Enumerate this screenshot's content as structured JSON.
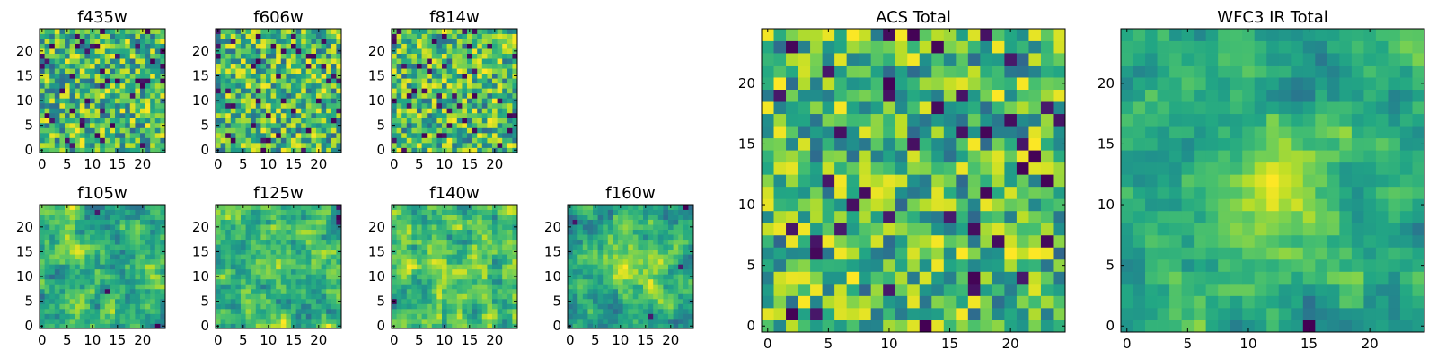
{
  "chart_data": [
    {
      "type": "heatmap",
      "title": "f435w",
      "xlabel": "",
      "ylabel": "",
      "grid_size": 25,
      "xlim": [
        -0.5,
        24.5
      ],
      "ylim": [
        -0.5,
        24.5
      ],
      "xticks": [
        0,
        5,
        10,
        15,
        20
      ],
      "yticks": [
        0,
        5,
        10,
        15,
        20
      ],
      "colormap": "viridis",
      "pattern": "fine-noise",
      "seed": 11
    },
    {
      "type": "heatmap",
      "title": "f606w",
      "xlabel": "",
      "ylabel": "",
      "grid_size": 25,
      "xlim": [
        -0.5,
        24.5
      ],
      "ylim": [
        -0.5,
        24.5
      ],
      "xticks": [
        0,
        5,
        10,
        15,
        20
      ],
      "yticks": [
        0,
        5,
        10,
        15,
        20
      ],
      "colormap": "viridis",
      "pattern": "fine-noise",
      "seed": 23
    },
    {
      "type": "heatmap",
      "title": "f814w",
      "xlabel": "",
      "ylabel": "",
      "grid_size": 25,
      "xlim": [
        -0.5,
        24.5
      ],
      "ylim": [
        -0.5,
        24.5
      ],
      "xticks": [
        0,
        5,
        10,
        15,
        20
      ],
      "yticks": [
        0,
        5,
        10,
        15,
        20
      ],
      "colormap": "viridis",
      "pattern": "fine-noise",
      "seed": 37
    },
    {
      "type": "heatmap",
      "title": "f105w",
      "xlabel": "",
      "ylabel": "",
      "grid_size": 25,
      "xlim": [
        -0.5,
        24.5
      ],
      "ylim": [
        -0.5,
        24.5
      ],
      "xticks": [
        0,
        5,
        10,
        15,
        20
      ],
      "yticks": [
        0,
        5,
        10,
        15,
        20
      ],
      "colormap": "viridis",
      "pattern": "smooth-noise",
      "seed": 41
    },
    {
      "type": "heatmap",
      "title": "f125w",
      "xlabel": "",
      "ylabel": "",
      "grid_size": 25,
      "xlim": [
        -0.5,
        24.5
      ],
      "ylim": [
        -0.5,
        24.5
      ],
      "xticks": [
        0,
        5,
        10,
        15,
        20
      ],
      "yticks": [
        0,
        5,
        10,
        15,
        20
      ],
      "colormap": "viridis",
      "pattern": "smooth-noise",
      "seed": 53
    },
    {
      "type": "heatmap",
      "title": "f140w",
      "xlabel": "",
      "ylabel": "",
      "grid_size": 25,
      "xlim": [
        -0.5,
        24.5
      ],
      "ylim": [
        -0.5,
        24.5
      ],
      "xticks": [
        0,
        5,
        10,
        15,
        20
      ],
      "yticks": [
        0,
        5,
        10,
        15,
        20
      ],
      "colormap": "viridis",
      "pattern": "smooth-noise",
      "seed": 67
    },
    {
      "type": "heatmap",
      "title": "f160w",
      "xlabel": "",
      "ylabel": "",
      "grid_size": 25,
      "xlim": [
        -0.5,
        24.5
      ],
      "ylim": [
        -0.5,
        24.5
      ],
      "xticks": [
        0,
        5,
        10,
        15,
        20
      ],
      "yticks": [
        0,
        5,
        10,
        15,
        20
      ],
      "colormap": "viridis",
      "pattern": "smooth-noise-bright-center",
      "seed": 79
    },
    {
      "type": "heatmap",
      "title": "ACS Total",
      "xlabel": "",
      "ylabel": "",
      "grid_size": 25,
      "xlim": [
        -0.5,
        24.5
      ],
      "ylim": [
        -0.5,
        24.5
      ],
      "xticks": [
        0,
        5,
        10,
        15,
        20
      ],
      "yticks": [
        0,
        5,
        10,
        15,
        20
      ],
      "colormap": "viridis",
      "pattern": "fine-noise",
      "seed": 97
    },
    {
      "type": "heatmap",
      "title": "WFC3 IR Total",
      "xlabel": "",
      "ylabel": "",
      "grid_size": 25,
      "xlim": [
        -0.5,
        24.5
      ],
      "ylim": [
        -0.5,
        24.5
      ],
      "xticks": [
        0,
        5,
        10,
        15,
        20
      ],
      "yticks": [
        0,
        5,
        10,
        15,
        20
      ],
      "colormap": "viridis",
      "pattern": "smooth-noise-bright-center",
      "seed": 101
    }
  ]
}
